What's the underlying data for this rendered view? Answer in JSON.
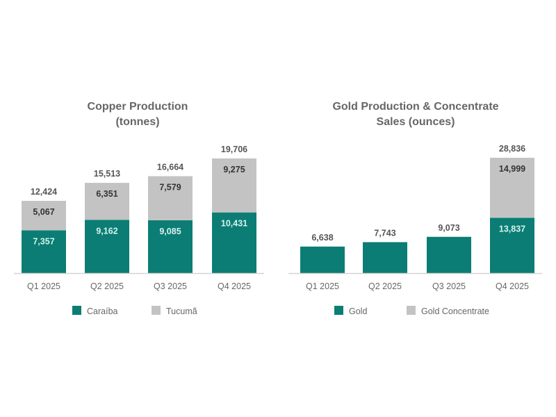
{
  "chart_data": [
    {
      "type": "bar",
      "stacked": true,
      "title": "Copper Production (tonnes)",
      "title_lines": [
        "Copper Production",
        "(tonnes)"
      ],
      "categories": [
        "Q1 2025",
        "Q2 2025",
        "Q3 2025",
        "Q4 2025"
      ],
      "series": [
        {
          "name": "Caraíba",
          "values": [
            7357,
            9162,
            9085,
            10431
          ],
          "labels": [
            "7,357",
            "9,162",
            "9,085",
            "10,431"
          ],
          "color": "#0b7d74"
        },
        {
          "name": "Tucumã",
          "values": [
            5067,
            6351,
            7579,
            9275
          ],
          "labels": [
            "5,067",
            "6,351",
            "7,579",
            "9,275"
          ],
          "color": "#c3c3c3"
        }
      ],
      "totals": [
        "12,424",
        "15,513",
        "16,664",
        "19,706"
      ],
      "ylim": [
        0,
        20000
      ],
      "grid": false,
      "legend": "bottom"
    },
    {
      "type": "bar",
      "stacked": true,
      "title": "Gold Production & Concentrate Sales (ounces)",
      "title_lines": [
        "Gold Production & Concentrate",
        "Sales (ounces)"
      ],
      "categories": [
        "Q1 2025",
        "Q2 2025",
        "Q3 2025",
        "Q4 2025"
      ],
      "series": [
        {
          "name": "Gold",
          "values": [
            6638,
            7743,
            9073,
            13837
          ],
          "labels": [
            "",
            "",
            "",
            "13,837"
          ],
          "color": "#0b7d74"
        },
        {
          "name": "Gold Concentrate",
          "values": [
            0,
            0,
            0,
            14999
          ],
          "labels": [
            "",
            "",
            "",
            "14,999"
          ],
          "color": "#c3c3c3"
        }
      ],
      "totals": [
        "6,638",
        "7,743",
        "9,073",
        "28,836"
      ],
      "ylim": [
        0,
        29000
      ],
      "grid": false,
      "legend": "bottom"
    }
  ]
}
